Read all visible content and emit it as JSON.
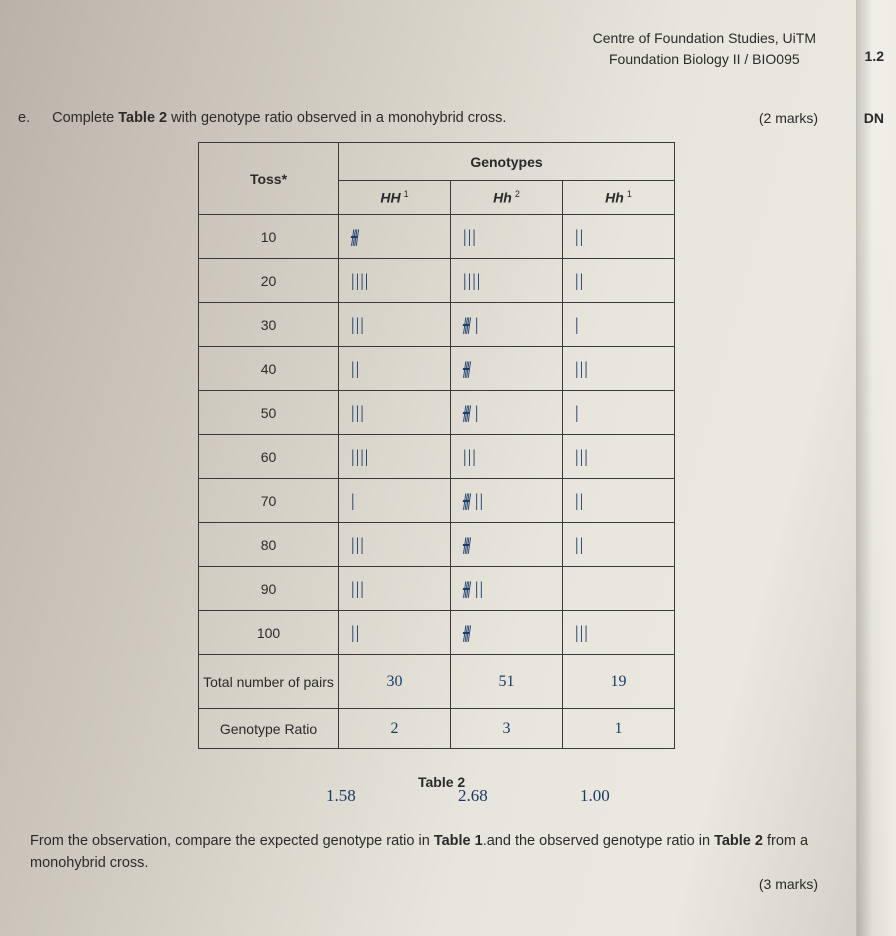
{
  "header": {
    "line1": "Centre of Foundation Studies, UiTM",
    "line2": "Foundation Biology II / BIO095"
  },
  "side": {
    "num1": "1.2",
    "num2": "DN"
  },
  "question": {
    "letter": "e.",
    "text": "Complete Table 2 with genotype ratio observed in a monohybrid cross.",
    "marks": "(2   marks)"
  },
  "table": {
    "toss_header": "Toss*",
    "genotypes_header": "Genotypes",
    "col_HH": "HH",
    "col_Hh2": "Hh",
    "col_Hh1": "Hh",
    "sup1": "1",
    "sup2": "2",
    "sup3": "1",
    "rows": [
      {
        "toss": "10",
        "hh": "⼌𝖧𝖧",
        "hh_t": "strike5",
        "mid": "|||",
        "right": "||"
      },
      {
        "toss": "20",
        "hh": "||||",
        "mid": "||||",
        "right": "||"
      },
      {
        "toss": "30",
        "hh": "|||",
        "mid": "𝖧𝖧𝖧 |",
        "mid_t": "strike5_1",
        "right": "|"
      },
      {
        "toss": "40",
        "hh": "||",
        "mid": "𝖧𝖧𝖧",
        "mid_t": "strike5",
        "right": "|||"
      },
      {
        "toss": "50",
        "hh": "|||",
        "mid": "𝖧𝖧𝖧 |",
        "mid_t": "strike5_1",
        "right": "|"
      },
      {
        "toss": "60",
        "hh": "||||",
        "mid": "|||",
        "right": "|||"
      },
      {
        "toss": "70",
        "hh": "|",
        "mid": "𝖧𝖧𝖧 ||",
        "mid_t": "strike5_2",
        "right": "||"
      },
      {
        "toss": "80",
        "hh": "|||",
        "mid": "𝖧𝖧𝖧",
        "mid_t": "strike5",
        "right": "||"
      },
      {
        "toss": "90",
        "hh": "|||",
        "mid": "𝖧𝖧𝖧 ||",
        "mid_t": "strike5_2",
        "right": ""
      },
      {
        "toss": "100",
        "hh": "||",
        "mid": "𝖧𝖧𝖧",
        "mid_t": "strike5",
        "right": "|||"
      }
    ],
    "total_label": "Total number of pairs",
    "total_hh": "30",
    "total_mid": "51",
    "total_right": "19",
    "ratio_label": "Genotype Ratio",
    "ratio_hh": "2",
    "ratio_mid": "3",
    "ratio_right": "1"
  },
  "caption": "Table 2",
  "below": {
    "n1": "1.58",
    "n2": "2.68",
    "n3": "1.00"
  },
  "bottom": {
    "text": "From the observation, compare the expected genotype ratio in Table 1.and the observed genotype ratio in Table 2 from a monohybrid cross.",
    "marks": "(3 marks)"
  }
}
